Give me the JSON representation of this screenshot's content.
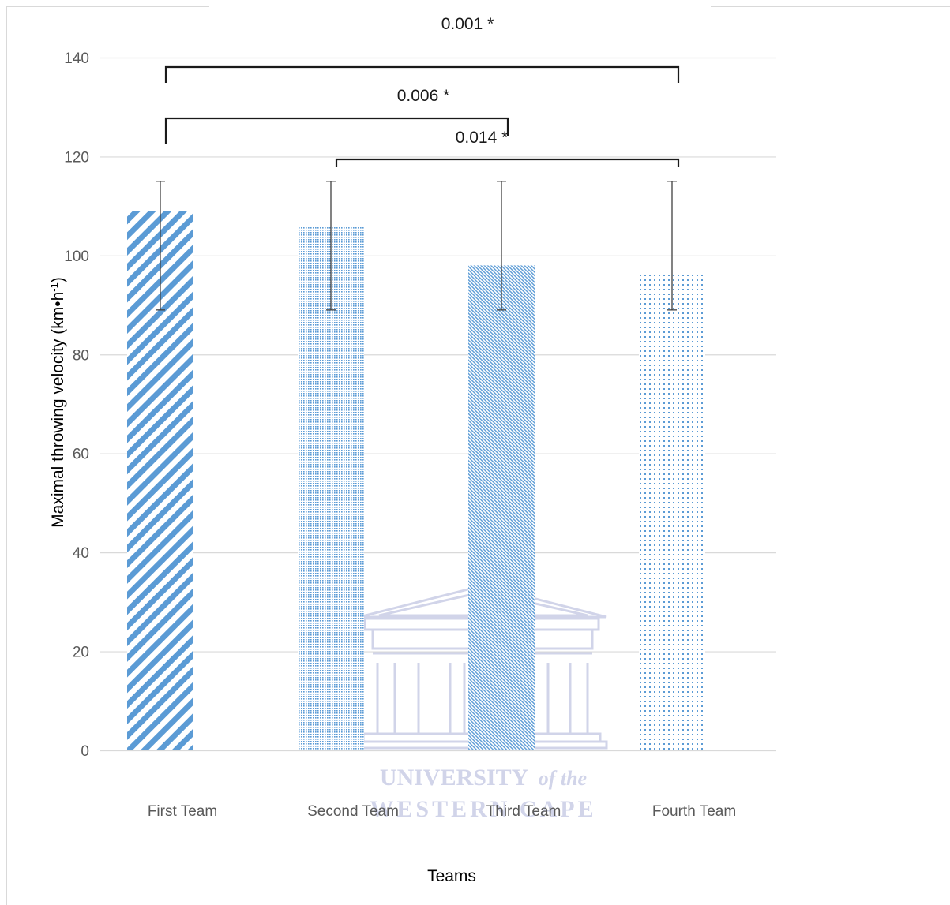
{
  "chart_data": {
    "type": "bar",
    "title": "",
    "xlabel": "Teams",
    "ylabel": "Maximal throwing  velocity  (km•h",
    "ylabel_unit_sup": "-1",
    "ylabel_close": ")",
    "categories": [
      "First Team",
      "Second Team",
      "Third Team",
      "Fourth Team"
    ],
    "values": [
      109,
      106,
      98,
      96
    ],
    "error_bars": [
      {
        "low": 89,
        "high": 115
      },
      {
        "low": 89,
        "high": 115
      },
      {
        "low": 89,
        "high": 115
      },
      {
        "low": 89,
        "high": 115
      }
    ],
    "ylim": [
      0,
      140
    ],
    "yticks": [
      "0",
      "20",
      "40",
      "60",
      "80",
      "100",
      "120",
      "140"
    ],
    "grid": true,
    "bar_color": "#5b9bd5",
    "patterns": [
      "wide-diagonal",
      "dense-dots",
      "fine-diagonal",
      "sparse-dots"
    ],
    "significance": [
      {
        "label": "0.001 *",
        "from": 0,
        "to": 3
      },
      {
        "label": "0.006 *",
        "from": 0,
        "to": 2
      },
      {
        "label": "0.014 *",
        "from": 1,
        "to": 3
      }
    ]
  },
  "watermark": {
    "line1": "UNIVERSITY",
    "line1_suffix": "of the",
    "line2": "WESTERN CAPE",
    "color": "#c9cde6"
  }
}
